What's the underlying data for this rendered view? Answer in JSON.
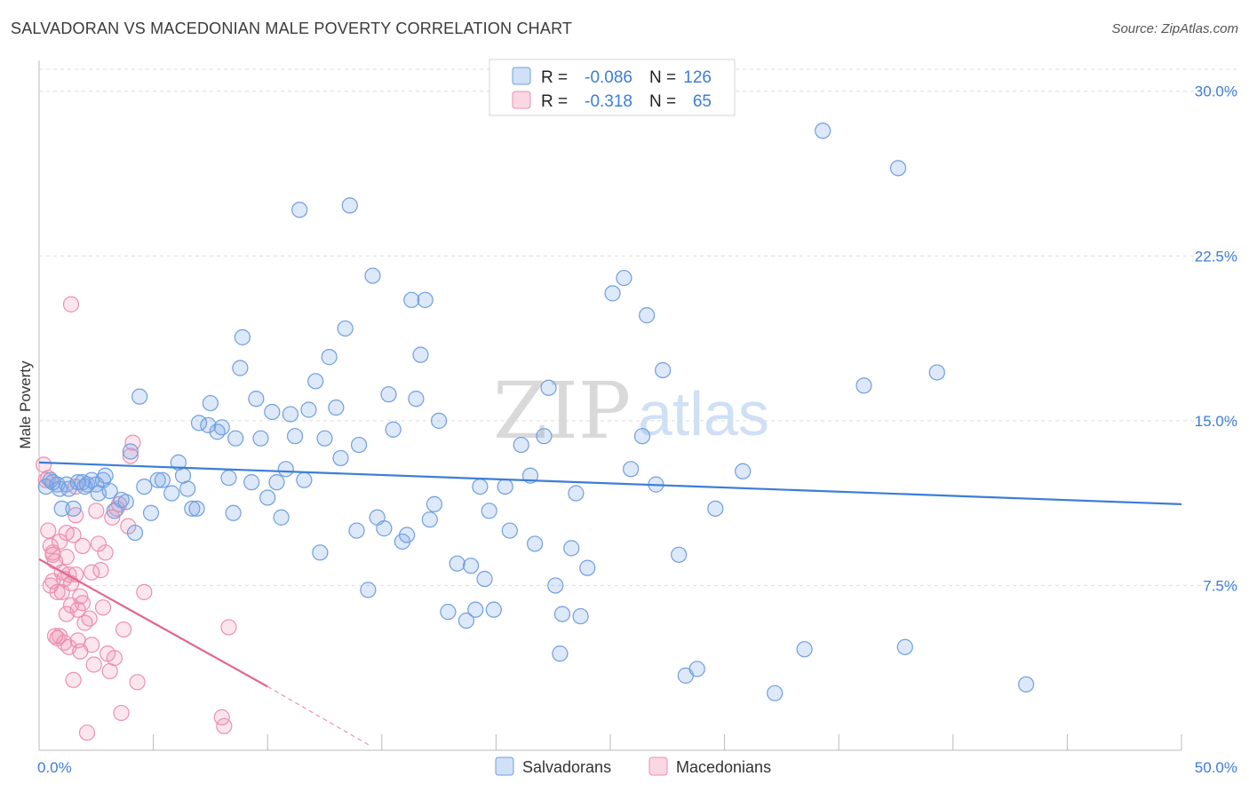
{
  "title": "SALVADORAN VS MACEDONIAN MALE POVERTY CORRELATION CHART",
  "source": "Source: ZipAtlas.com",
  "watermark": {
    "zip": "ZIP",
    "atlas": "atlas"
  },
  "colors": {
    "blue": "#3b7dd8",
    "blue_fill": "rgba(120,165,230,0.25)",
    "blue_stroke": "#6f9fe0",
    "pink": "#e26692",
    "pink_fill": "rgba(240,140,175,0.22)",
    "pink_stroke": "#ec8fb0",
    "grid": "#dddddd"
  },
  "legend": {
    "rows": [
      {
        "r_label": "R =",
        "r_value": "-0.086",
        "n_label": "N =",
        "n_value": "126"
      },
      {
        "r_label": "R =",
        "r_value": "-0.318",
        "n_label": "N =",
        "n_value": "65"
      }
    ]
  },
  "bottom_legend": [
    "Salvadorans",
    "Macedonians"
  ],
  "chart_data": {
    "type": "scatter",
    "title": "SALVADORAN VS MACEDONIAN MALE POVERTY CORRELATION CHART",
    "xlabel": "",
    "ylabel": "Male Poverty",
    "xlim": [
      0,
      50
    ],
    "ylim": [
      0,
      30
    ],
    "x_tick_labels": [
      "0.0%",
      "50.0%"
    ],
    "y_ticks": [
      7.5,
      15.0,
      22.5,
      30.0
    ],
    "y_tick_labels": [
      "7.5%",
      "15.0%",
      "22.5%",
      "30.0%"
    ],
    "series": [
      {
        "name": "Salvadorans",
        "trend": {
          "x": [
            0,
            50
          ],
          "y": [
            13.1,
            11.2
          ]
        },
        "points": [
          [
            0.3,
            12.0
          ],
          [
            0.5,
            12.3
          ],
          [
            0.8,
            12.1
          ],
          [
            1.0,
            11.0
          ],
          [
            1.2,
            12.1
          ],
          [
            1.5,
            11.0
          ],
          [
            1.7,
            12.2
          ],
          [
            1.9,
            12.2
          ],
          [
            2.1,
            12.1
          ],
          [
            2.3,
            12.3
          ],
          [
            2.5,
            12.1
          ],
          [
            2.6,
            11.7
          ],
          [
            2.8,
            12.3
          ],
          [
            2.9,
            12.5
          ],
          [
            3.1,
            11.8
          ],
          [
            3.3,
            10.9
          ],
          [
            3.6,
            11.4
          ],
          [
            3.8,
            11.3
          ],
          [
            4.0,
            13.6
          ],
          [
            4.2,
            9.9
          ],
          [
            4.4,
            16.1
          ],
          [
            4.6,
            12.0
          ],
          [
            4.9,
            10.8
          ],
          [
            5.2,
            12.3
          ],
          [
            5.4,
            12.3
          ],
          [
            5.8,
            11.7
          ],
          [
            6.1,
            13.1
          ],
          [
            6.3,
            12.5
          ],
          [
            6.5,
            11.9
          ],
          [
            6.7,
            11.0
          ],
          [
            6.9,
            11.0
          ],
          [
            7.0,
            14.9
          ],
          [
            7.4,
            14.8
          ],
          [
            7.5,
            15.8
          ],
          [
            7.8,
            14.5
          ],
          [
            8.0,
            14.7
          ],
          [
            8.3,
            12.4
          ],
          [
            8.5,
            10.8
          ],
          [
            8.6,
            14.2
          ],
          [
            8.8,
            17.4
          ],
          [
            8.9,
            18.8
          ],
          [
            9.3,
            12.2
          ],
          [
            9.5,
            16.0
          ],
          [
            9.7,
            14.2
          ],
          [
            10.0,
            11.5
          ],
          [
            10.2,
            15.4
          ],
          [
            10.4,
            12.2
          ],
          [
            10.6,
            10.6
          ],
          [
            10.8,
            12.8
          ],
          [
            11.0,
            15.3
          ],
          [
            11.2,
            14.3
          ],
          [
            11.4,
            24.6
          ],
          [
            11.6,
            12.3
          ],
          [
            11.8,
            15.5
          ],
          [
            12.1,
            16.8
          ],
          [
            12.3,
            9.0
          ],
          [
            12.5,
            14.2
          ],
          [
            12.7,
            17.9
          ],
          [
            13.0,
            15.6
          ],
          [
            13.2,
            13.3
          ],
          [
            13.4,
            19.2
          ],
          [
            13.6,
            24.8
          ],
          [
            13.9,
            10.0
          ],
          [
            14.0,
            13.9
          ],
          [
            14.4,
            7.3
          ],
          [
            14.6,
            21.6
          ],
          [
            14.8,
            10.6
          ],
          [
            15.1,
            10.1
          ],
          [
            15.3,
            16.2
          ],
          [
            15.5,
            14.6
          ],
          [
            15.9,
            9.5
          ],
          [
            16.1,
            9.8
          ],
          [
            16.3,
            20.5
          ],
          [
            16.5,
            16.0
          ],
          [
            16.7,
            18.0
          ],
          [
            16.9,
            20.5
          ],
          [
            17.1,
            10.5
          ],
          [
            17.3,
            11.2
          ],
          [
            17.5,
            15.0
          ],
          [
            17.9,
            6.3
          ],
          [
            18.3,
            8.5
          ],
          [
            18.7,
            5.9
          ],
          [
            18.9,
            8.4
          ],
          [
            19.1,
            6.4
          ],
          [
            19.3,
            12.0
          ],
          [
            19.5,
            7.8
          ],
          [
            19.7,
            10.9
          ],
          [
            19.9,
            6.4
          ],
          [
            20.4,
            12.0
          ],
          [
            20.6,
            10.0
          ],
          [
            21.1,
            13.9
          ],
          [
            21.5,
            12.5
          ],
          [
            21.7,
            9.4
          ],
          [
            22.1,
            14.3
          ],
          [
            22.3,
            16.5
          ],
          [
            22.6,
            7.5
          ],
          [
            22.9,
            6.2
          ],
          [
            23.3,
            9.2
          ],
          [
            23.5,
            11.7
          ],
          [
            23.7,
            6.1
          ],
          [
            24.0,
            8.3
          ],
          [
            25.1,
            20.8
          ],
          [
            25.6,
            21.5
          ],
          [
            25.9,
            12.8
          ],
          [
            26.4,
            14.3
          ],
          [
            26.6,
            19.8
          ],
          [
            27.0,
            12.1
          ],
          [
            27.3,
            17.3
          ],
          [
            28.0,
            8.9
          ],
          [
            28.3,
            3.4
          ],
          [
            28.8,
            3.7
          ],
          [
            29.6,
            11.0
          ],
          [
            30.8,
            12.7
          ],
          [
            32.2,
            2.6
          ],
          [
            33.5,
            4.6
          ],
          [
            34.3,
            28.2
          ],
          [
            36.1,
            16.6
          ],
          [
            37.6,
            26.5
          ],
          [
            37.9,
            4.7
          ],
          [
            39.3,
            17.2
          ],
          [
            43.2,
            3.0
          ],
          [
            22.8,
            4.4
          ],
          [
            0.6,
            12.2
          ],
          [
            0.9,
            11.9
          ],
          [
            1.3,
            11.9
          ],
          [
            2.0,
            12.0
          ]
        ]
      },
      {
        "name": "Macedonians",
        "trend": {
          "x": [
            0,
            10
          ],
          "y": [
            8.7,
            2.9
          ],
          "dash_to": [
            14.5,
            0.2
          ]
        },
        "points": [
          [
            0.2,
            13.0
          ],
          [
            0.3,
            12.3
          ],
          [
            0.4,
            10.0
          ],
          [
            0.5,
            9.3
          ],
          [
            0.5,
            7.5
          ],
          [
            0.6,
            7.7
          ],
          [
            0.6,
            9.0
          ],
          [
            0.7,
            8.6
          ],
          [
            0.7,
            5.2
          ],
          [
            0.8,
            7.2
          ],
          [
            0.9,
            9.5
          ],
          [
            0.9,
            5.2
          ],
          [
            1.0,
            8.1
          ],
          [
            1.1,
            7.8
          ],
          [
            1.1,
            4.9
          ],
          [
            1.2,
            8.8
          ],
          [
            1.2,
            6.2
          ],
          [
            1.3,
            8.0
          ],
          [
            1.3,
            4.7
          ],
          [
            1.4,
            7.6
          ],
          [
            1.4,
            6.6
          ],
          [
            1.5,
            9.8
          ],
          [
            1.5,
            3.2
          ],
          [
            1.6,
            12.0
          ],
          [
            1.6,
            8.0
          ],
          [
            1.7,
            6.4
          ],
          [
            1.7,
            5.0
          ],
          [
            1.8,
            7.0
          ],
          [
            1.8,
            4.5
          ],
          [
            1.9,
            6.7
          ],
          [
            2.0,
            5.8
          ],
          [
            2.1,
            0.8
          ],
          [
            2.2,
            6.0
          ],
          [
            2.3,
            4.8
          ],
          [
            2.4,
            3.9
          ],
          [
            2.5,
            10.9
          ],
          [
            2.6,
            9.4
          ],
          [
            2.7,
            8.2
          ],
          [
            2.8,
            6.5
          ],
          [
            3.0,
            4.4
          ],
          [
            3.1,
            3.6
          ],
          [
            3.2,
            10.6
          ],
          [
            3.3,
            4.2
          ],
          [
            3.5,
            11.2
          ],
          [
            3.6,
            1.7
          ],
          [
            3.7,
            5.5
          ],
          [
            3.9,
            10.2
          ],
          [
            4.0,
            13.4
          ],
          [
            4.1,
            14.0
          ],
          [
            4.3,
            3.1
          ],
          [
            4.6,
            7.2
          ],
          [
            8.0,
            1.5
          ],
          [
            8.1,
            1.1
          ],
          [
            8.3,
            5.6
          ],
          [
            1.4,
            20.3
          ],
          [
            0.6,
            8.9
          ],
          [
            1.0,
            7.2
          ],
          [
            1.9,
            9.3
          ],
          [
            2.3,
            8.1
          ],
          [
            0.8,
            5.1
          ],
          [
            1.2,
            9.9
          ],
          [
            0.4,
            12.4
          ],
          [
            3.4,
            11.0
          ],
          [
            2.9,
            9.0
          ],
          [
            1.6,
            10.7
          ]
        ]
      }
    ]
  }
}
